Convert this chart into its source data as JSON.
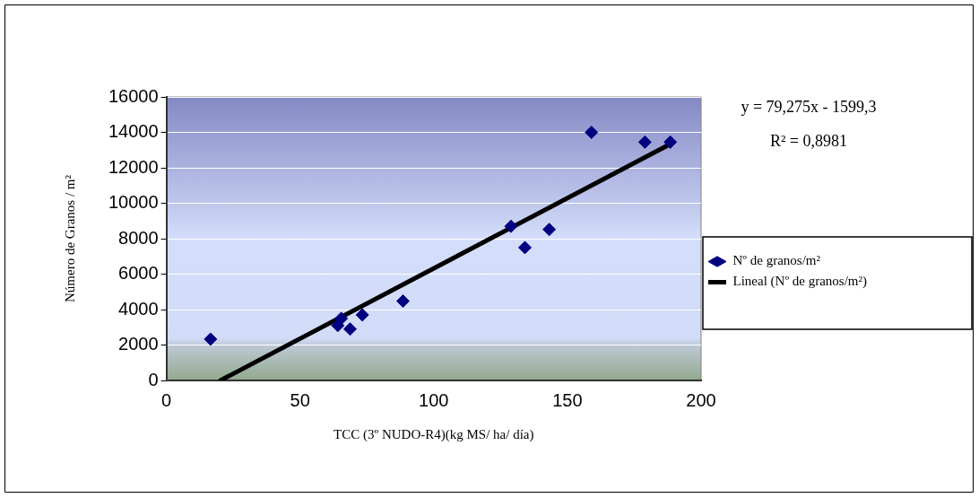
{
  "chart_data": {
    "type": "scatter",
    "xlabel": "TCC (3º NUDO-R4)(kg MS/ ha/ día)",
    "ylabel": "Número de Granos / m²",
    "series": [
      {
        "name": "Nº de granos/m²",
        "color": "#000080",
        "marker": "diamond",
        "x": [
          16.5,
          65.4,
          64.1,
          68.7,
          73.3,
          88.5,
          128.9,
          134.1,
          143.2,
          159.0,
          179.0,
          188.5
        ],
        "values": [
          2330,
          3500,
          3100,
          2900,
          3700,
          4480,
          8700,
          7500,
          8520,
          14000,
          13450,
          13450
        ]
      },
      {
        "name": "Lineal (Nº de granos/m²)",
        "color": "#000000",
        "type": "line",
        "marker": "none",
        "x": [
          20.2,
          188.5
        ],
        "values": [
          0,
          13340
        ]
      }
    ],
    "xlim": [
      0,
      200
    ],
    "xticks": [
      0,
      50,
      100,
      150,
      200
    ],
    "ylim": [
      0,
      16000
    ],
    "yticks": [
      0,
      2000,
      4000,
      6000,
      8000,
      10000,
      12000,
      14000,
      16000
    ],
    "grid": "y",
    "legend": "right",
    "annotations": [
      "y = 79,275x - 1599,3",
      "R² = 0,8981"
    ]
  }
}
